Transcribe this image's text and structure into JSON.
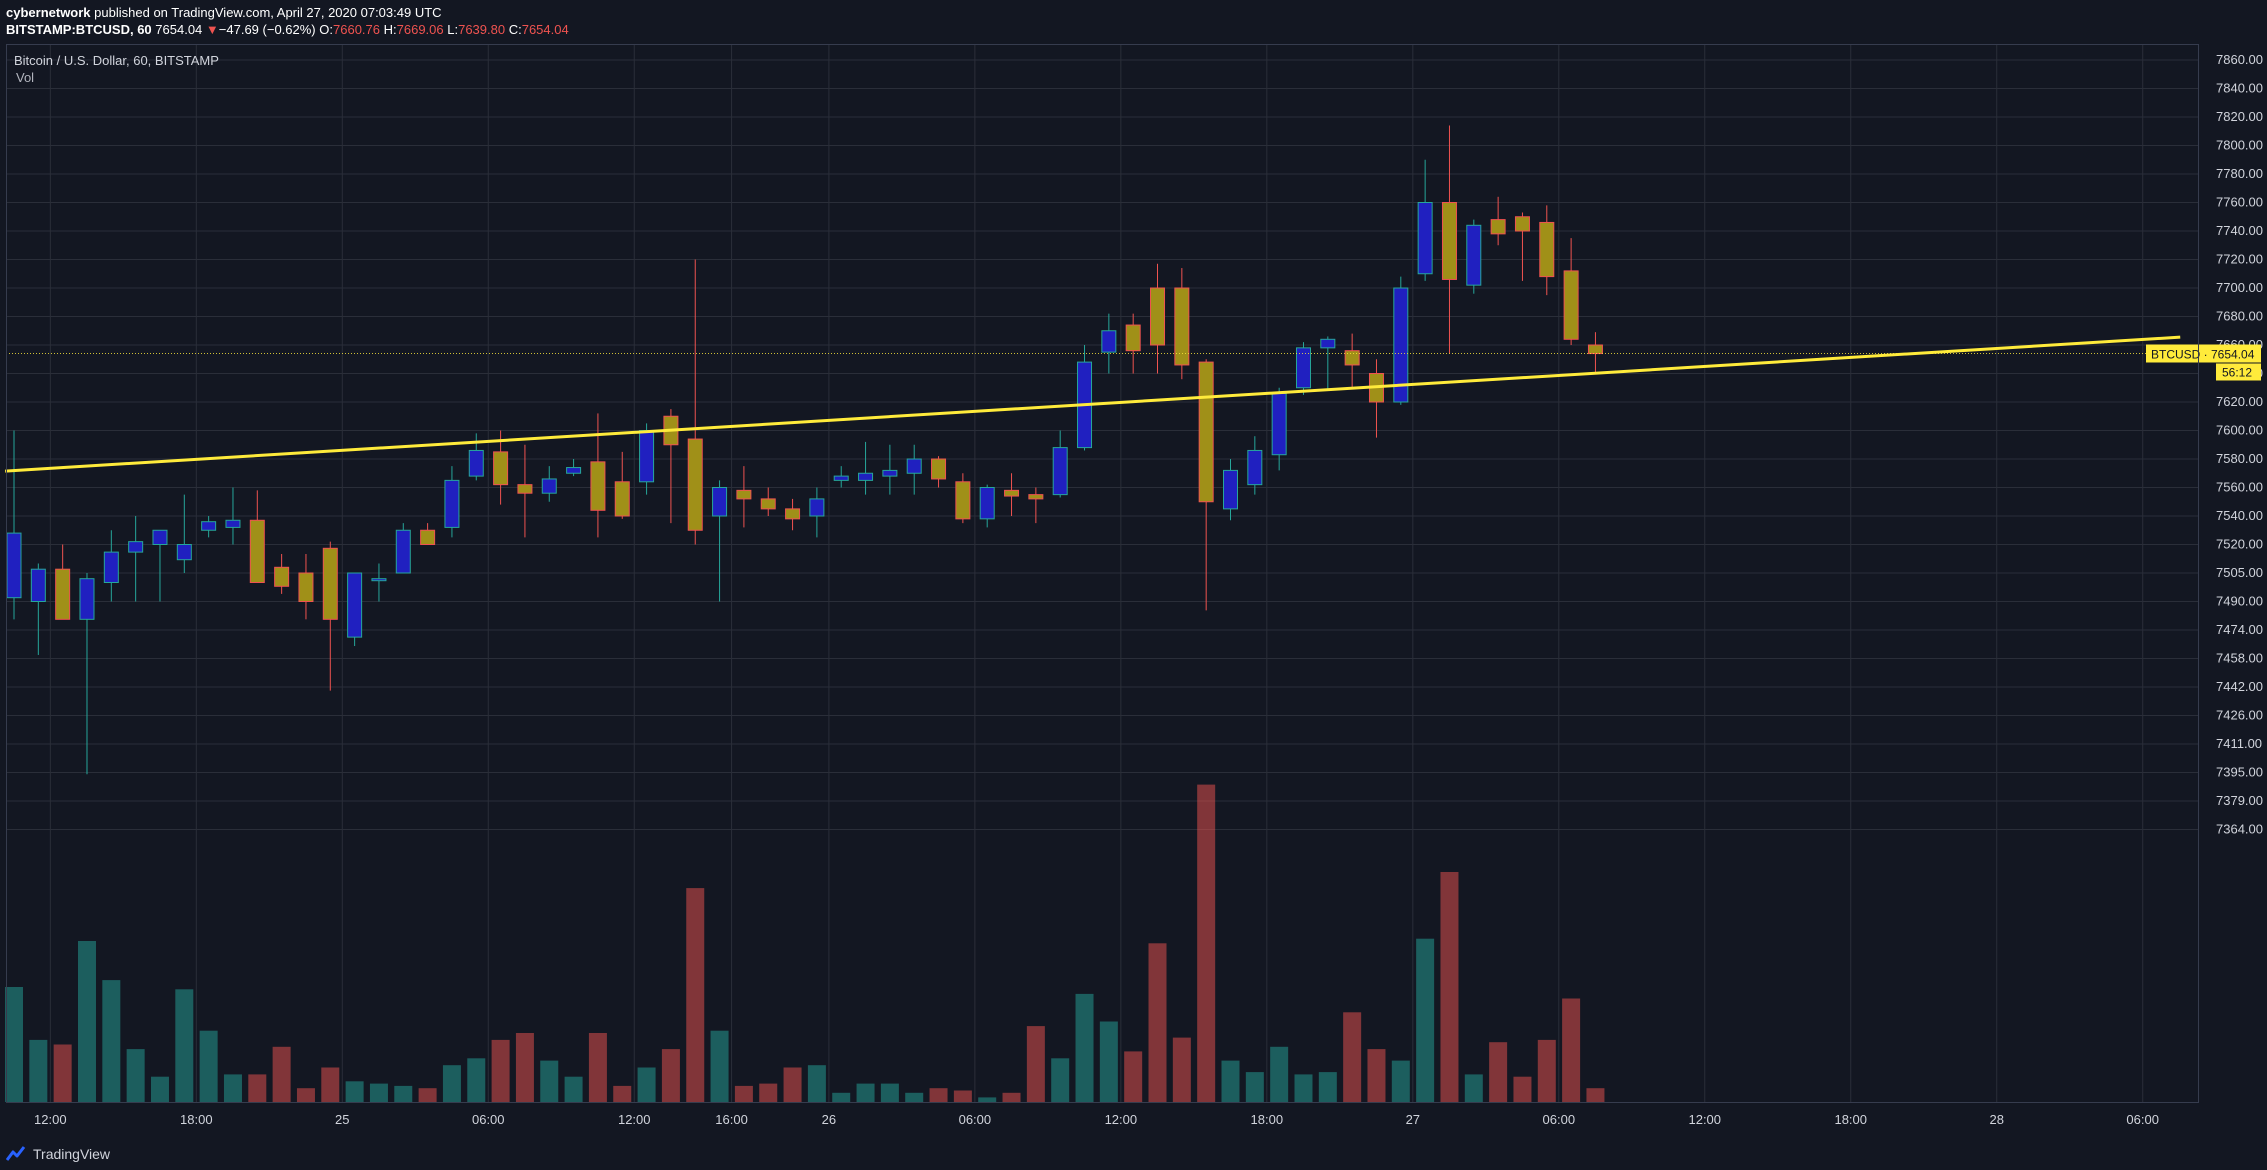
{
  "header": {
    "author": "cybernetwork",
    "published_text": "published on TradingView.com, April 27, 2020 07:03:49 UTC",
    "symbol_interval": "BITSTAMP:BTCUSD, 60",
    "last": "7654.04",
    "arrow": "▼",
    "change": "−47.69 (−0.62%)",
    "o_label": "O:",
    "o_value": "7660.76",
    "h_label": "H:",
    "h_value": "7669.06",
    "l_label": "L:",
    "l_value": "7639.80",
    "c_label": "C:",
    "c_value": "7654.04"
  },
  "legend": {
    "title": "Bitcoin / U.S. Dollar, 60, BITSTAMP",
    "vol": "Vol"
  },
  "footer": {
    "brand": "TradingView"
  },
  "colors": {
    "background": "#131722",
    "grid": "#2a2e39",
    "up_candle": "#2020c0",
    "down_candle": "#a09018",
    "wick_up": "#26a69a",
    "wick_down": "#ef5350",
    "vol_up": "#26a69a",
    "vol_down": "#ef5350",
    "trendline": "#ffeb3b",
    "price_label_bg": "#ffeb3b"
  },
  "chart_data": {
    "type": "candlestick",
    "symbol": "BTCUSD",
    "interval": "60",
    "price_label": {
      "name": "BTCUSD",
      "value": "7654.04",
      "countdown": "56:12"
    },
    "y_ticks": [
      7860,
      7840,
      7820,
      7800,
      7780,
      7760,
      7740,
      7720,
      7700,
      7680,
      7660,
      7640,
      7620,
      7600,
      7580,
      7560,
      7540,
      7520,
      7505,
      7490,
      7474,
      7458,
      7442,
      7426,
      7411,
      7395,
      7379,
      7364
    ],
    "y_tick_labels": [
      "7860.00",
      "7840.00",
      "7820.00",
      "7800.00",
      "7780.00",
      "7760.00",
      "7740.00",
      "7720.00",
      "7700.00",
      "7680.00",
      "7660.00",
      "7640.00",
      "7620.00",
      "7600.00",
      "7580.00",
      "7560.00",
      "7540.00",
      "7520.00",
      "7505.00",
      "7490.00",
      "7474.00",
      "7458.00",
      "7442.00",
      "7426.00",
      "7411.00",
      "7395.00",
      "7379.00",
      "7364.00"
    ],
    "x_ticks": [
      {
        "label": "12:00",
        "index": 1
      },
      {
        "label": "18:00",
        "index": 7
      },
      {
        "label": "25",
        "index": 13
      },
      {
        "label": "06:00",
        "index": 19
      },
      {
        "label": "12:00",
        "index": 25
      },
      {
        "label": "16:00",
        "index": 29
      },
      {
        "label": "26",
        "index": 33
      },
      {
        "label": "06:00",
        "index": 39
      },
      {
        "label": "12:00",
        "index": 45
      },
      {
        "label": "18:00",
        "index": 51
      },
      {
        "label": "27",
        "index": 57
      },
      {
        "label": "06:00",
        "index": 63
      },
      {
        "label": "12:00",
        "index": 69
      },
      {
        "label": "18:00",
        "index": 75
      },
      {
        "label": "28",
        "index": 81
      },
      {
        "label": "06:00",
        "index": 87
      }
    ],
    "candles": [
      {
        "o": 7492,
        "h": 7600,
        "l": 7480,
        "c": 7528,
        "v": 0.5
      },
      {
        "o": 7490,
        "h": 7510,
        "l": 7460,
        "c": 7507,
        "v": 0.27
      },
      {
        "o": 7507,
        "h": 7520,
        "l": 7480,
        "c": 7480,
        "v": 0.25
      },
      {
        "o": 7480,
        "h": 7505,
        "l": 7394,
        "c": 7502,
        "v": 0.7
      },
      {
        "o": 7500,
        "h": 7530,
        "l": 7490,
        "c": 7516,
        "v": 0.53
      },
      {
        "o": 7516,
        "h": 7540,
        "l": 7490,
        "c": 7522,
        "v": 0.23
      },
      {
        "o": 7520,
        "h": 7530,
        "l": 7490,
        "c": 7530,
        "v": 0.11
      },
      {
        "o": 7512,
        "h": 7555,
        "l": 7505,
        "c": 7520,
        "v": 0.49
      },
      {
        "o": 7530,
        "h": 7540,
        "l": 7525,
        "c": 7536,
        "v": 0.31
      },
      {
        "o": 7532,
        "h": 7560,
        "l": 7520,
        "c": 7537,
        "v": 0.12
      },
      {
        "o": 7537,
        "h": 7558,
        "l": 7500,
        "c": 7500,
        "v": 0.12
      },
      {
        "o": 7508,
        "h": 7515,
        "l": 7494,
        "c": 7498,
        "v": 0.24
      },
      {
        "o": 7505,
        "h": 7515,
        "l": 7480,
        "c": 7490,
        "v": 0.06
      },
      {
        "o": 7518,
        "h": 7522,
        "l": 7440,
        "c": 7480,
        "v": 0.15
      },
      {
        "o": 7470,
        "h": 7505,
        "l": 7465,
        "c": 7505,
        "v": 0.09
      },
      {
        "o": 7502,
        "h": 7510,
        "l": 7490,
        "c": 7502,
        "v": 0.08
      },
      {
        "o": 7505,
        "h": 7535,
        "l": 7505,
        "c": 7530,
        "v": 0.07
      },
      {
        "o": 7530,
        "h": 7535,
        "l": 7520,
        "c": 7520,
        "v": 0.06
      },
      {
        "o": 7532,
        "h": 7575,
        "l": 7525,
        "c": 7565,
        "v": 0.16
      },
      {
        "o": 7568,
        "h": 7598,
        "l": 7565,
        "c": 7586,
        "v": 0.19
      },
      {
        "o": 7585,
        "h": 7600,
        "l": 7548,
        "c": 7562,
        "v": 0.27
      },
      {
        "o": 7562,
        "h": 7590,
        "l": 7525,
        "c": 7556,
        "v": 0.3
      },
      {
        "o": 7556,
        "h": 7575,
        "l": 7550,
        "c": 7566,
        "v": 0.18
      },
      {
        "o": 7570,
        "h": 7580,
        "l": 7568,
        "c": 7574,
        "v": 0.11
      },
      {
        "o": 7578,
        "h": 7612,
        "l": 7525,
        "c": 7544,
        "v": 0.3
      },
      {
        "o": 7564,
        "h": 7585,
        "l": 7538,
        "c": 7540,
        "v": 0.07
      },
      {
        "o": 7564,
        "h": 7605,
        "l": 7555,
        "c": 7600,
        "v": 0.15
      },
      {
        "o": 7610,
        "h": 7615,
        "l": 7535,
        "c": 7590,
        "v": 0.23
      },
      {
        "o": 7594,
        "h": 7720,
        "l": 7520,
        "c": 7530,
        "v": 0.93
      },
      {
        "o": 7540,
        "h": 7565,
        "l": 7490,
        "c": 7560,
        "v": 0.31
      },
      {
        "o": 7558,
        "h": 7575,
        "l": 7532,
        "c": 7552,
        "v": 0.07
      },
      {
        "o": 7552,
        "h": 7560,
        "l": 7540,
        "c": 7545,
        "v": 0.08
      },
      {
        "o": 7545,
        "h": 7552,
        "l": 7530,
        "c": 7538,
        "v": 0.15
      },
      {
        "o": 7540,
        "h": 7560,
        "l": 7525,
        "c": 7552,
        "v": 0.16
      },
      {
        "o": 7565,
        "h": 7575,
        "l": 7560,
        "c": 7568,
        "v": 0.04
      },
      {
        "o": 7565,
        "h": 7592,
        "l": 7555,
        "c": 7570,
        "v": 0.08
      },
      {
        "o": 7568,
        "h": 7590,
        "l": 7555,
        "c": 7572,
        "v": 0.08
      },
      {
        "o": 7570,
        "h": 7590,
        "l": 7555,
        "c": 7580,
        "v": 0.04
      },
      {
        "o": 7580,
        "h": 7582,
        "l": 7560,
        "c": 7566,
        "v": 0.06
      },
      {
        "o": 7564,
        "h": 7570,
        "l": 7535,
        "c": 7538,
        "v": 0.05
      },
      {
        "o": 7538,
        "h": 7562,
        "l": 7532,
        "c": 7560,
        "v": 0.02
      },
      {
        "o": 7558,
        "h": 7570,
        "l": 7540,
        "c": 7554,
        "v": 0.04
      },
      {
        "o": 7555,
        "h": 7560,
        "l": 7535,
        "c": 7552,
        "v": 0.33
      },
      {
        "o": 7555,
        "h": 7600,
        "l": 7553,
        "c": 7588,
        "v": 0.19
      },
      {
        "o": 7588,
        "h": 7660,
        "l": 7586,
        "c": 7648,
        "v": 0.47
      },
      {
        "o": 7655,
        "h": 7682,
        "l": 7640,
        "c": 7670,
        "v": 0.35
      },
      {
        "o": 7674,
        "h": 7682,
        "l": 7640,
        "c": 7656,
        "v": 0.22
      },
      {
        "o": 7700,
        "h": 7717,
        "l": 7640,
        "c": 7660,
        "v": 0.69
      },
      {
        "o": 7700,
        "h": 7714,
        "l": 7636,
        "c": 7646,
        "v": 0.28
      },
      {
        "o": 7648,
        "h": 7650,
        "l": 7485,
        "c": 7550,
        "v": 1.38
      },
      {
        "o": 7545,
        "h": 7580,
        "l": 7537,
        "c": 7572,
        "v": 0.18
      },
      {
        "o": 7562,
        "h": 7596,
        "l": 7555,
        "c": 7586,
        "v": 0.13
      },
      {
        "o": 7583,
        "h": 7630,
        "l": 7572,
        "c": 7626,
        "v": 0.24
      },
      {
        "o": 7630,
        "h": 7662,
        "l": 7625,
        "c": 7658,
        "v": 0.12
      },
      {
        "o": 7658,
        "h": 7666,
        "l": 7628,
        "c": 7664,
        "v": 0.13
      },
      {
        "o": 7656,
        "h": 7668,
        "l": 7630,
        "c": 7646,
        "v": 0.39
      },
      {
        "o": 7640,
        "h": 7650,
        "l": 7595,
        "c": 7620,
        "v": 0.23
      },
      {
        "o": 7620,
        "h": 7708,
        "l": 7618,
        "c": 7700,
        "v": 0.18
      },
      {
        "o": 7710,
        "h": 7790,
        "l": 7705,
        "c": 7760,
        "v": 0.71
      },
      {
        "o": 7760,
        "h": 7814,
        "l": 7654,
        "c": 7706,
        "v": 1.0
      },
      {
        "o": 7702,
        "h": 7748,
        "l": 7696,
        "c": 7744,
        "v": 0.12
      },
      {
        "o": 7748,
        "h": 7764,
        "l": 7730,
        "c": 7738,
        "v": 0.26
      },
      {
        "o": 7750,
        "h": 7753,
        "l": 7705,
        "c": 7740,
        "v": 0.11
      },
      {
        "o": 7746,
        "h": 7758,
        "l": 7695,
        "c": 7708,
        "v": 0.27
      },
      {
        "o": 7712,
        "h": 7735,
        "l": 7660,
        "c": 7664,
        "v": 0.45
      },
      {
        "o": 7660,
        "h": 7669,
        "l": 7640,
        "c": 7654,
        "v": 0.06
      }
    ],
    "trendline": {
      "x1_index": -0.2,
      "y1": 7571.5,
      "x2_index": 89.2,
      "y2": 7665.5
    }
  }
}
